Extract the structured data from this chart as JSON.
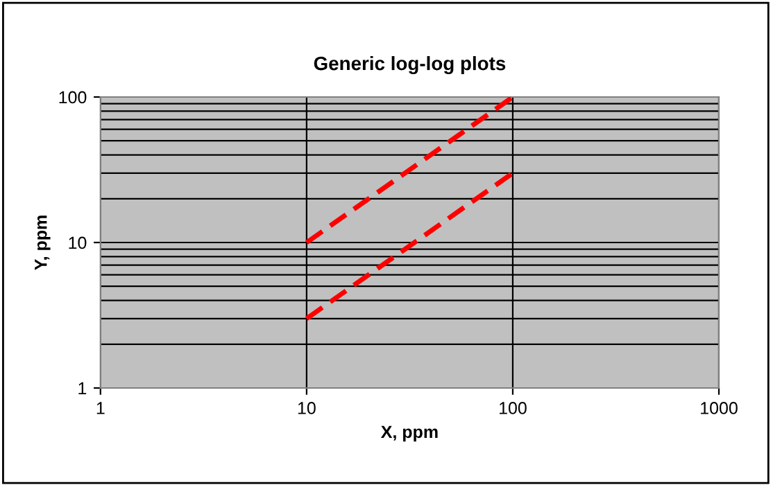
{
  "chart_data": {
    "type": "line",
    "title": "Generic log-log plots",
    "xlabel": "X, ppm",
    "ylabel": "Y, ppm",
    "log": "xy",
    "xlim": [
      1,
      1000
    ],
    "ylim": [
      1,
      100
    ],
    "xticks": [
      1,
      10,
      100,
      1000
    ],
    "yticks": [
      1,
      10,
      100
    ],
    "grid": true,
    "legend": false,
    "line_style": "dashed",
    "marker": "none",
    "x": [
      10,
      100
    ],
    "series": [
      {
        "color": "#ff0000",
        "values": [
          10,
          100
        ]
      },
      {
        "color": "#ff0000",
        "values": [
          3,
          30
        ]
      }
    ]
  }
}
